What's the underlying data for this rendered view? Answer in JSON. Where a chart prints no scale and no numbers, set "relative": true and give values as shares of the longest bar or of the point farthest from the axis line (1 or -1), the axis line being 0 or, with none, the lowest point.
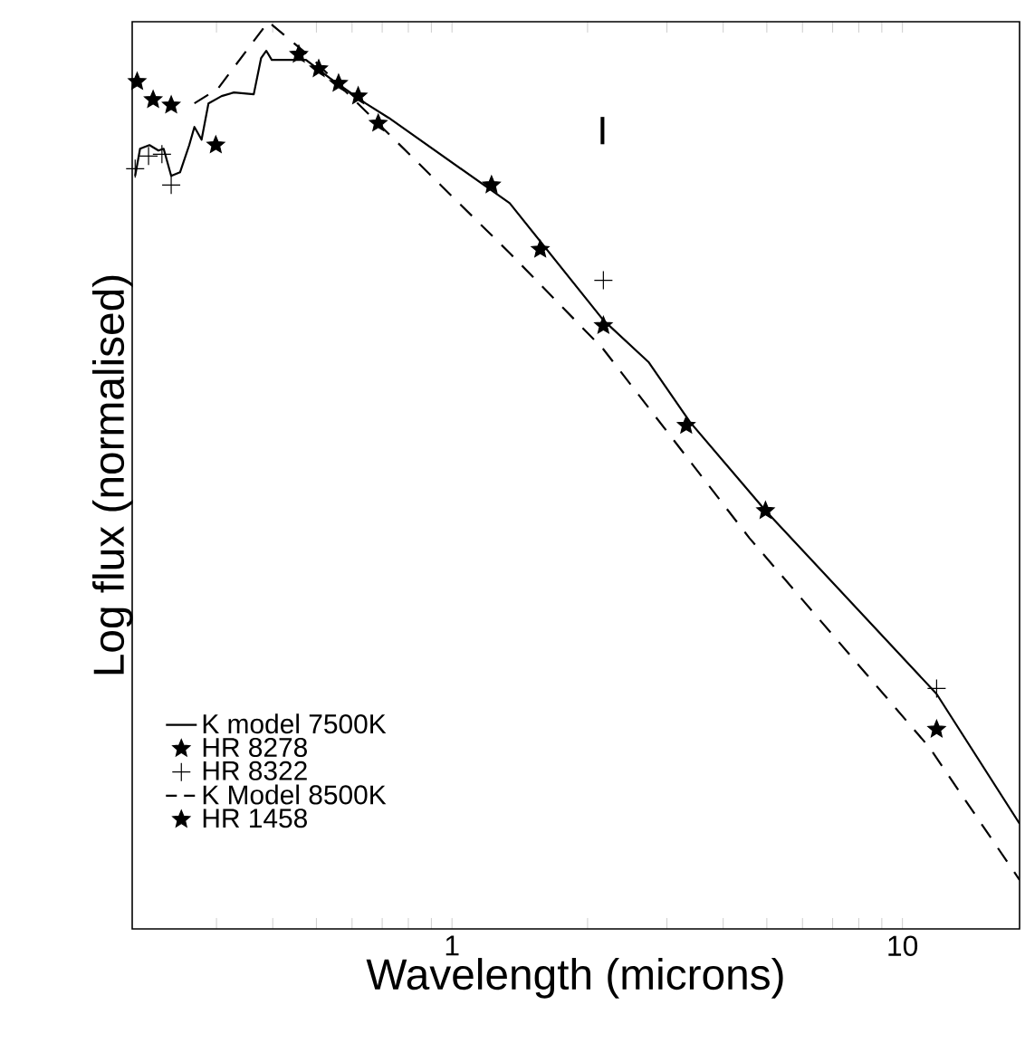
{
  "chart_data": {
    "type": "line",
    "xlabel": "Wavelength (microns)",
    "ylabel": "Log flux (normalised)",
    "relative": true,
    "log": "x",
    "xlim": [
      0.195,
      18.2
    ],
    "xticks": [
      {
        "value": 0.3,
        "label": null
      },
      {
        "value": 0.4,
        "label": null
      },
      {
        "value": 0.5,
        "label": null
      },
      {
        "value": 0.6,
        "label": null
      },
      {
        "value": 0.7,
        "label": null
      },
      {
        "value": 0.8,
        "label": null
      },
      {
        "value": 0.9,
        "label": null
      },
      1,
      {
        "value": 2,
        "label": null
      },
      {
        "value": 3,
        "label": null
      },
      {
        "value": 4,
        "label": null
      },
      {
        "value": 5,
        "label": null
      },
      {
        "value": 6,
        "label": null
      },
      {
        "value": 7,
        "label": null
      },
      {
        "value": 8,
        "label": null
      },
      {
        "value": 9,
        "label": null
      },
      10
    ],
    "legend": "bottom left",
    "grid": false,
    "annotations": [
      "I"
    ],
    "series": [
      {
        "name": "K model 7500K",
        "line_style": "solid",
        "marker": "none",
        "color": "#000000",
        "x": [
          0.198,
          0.203,
          0.213,
          0.223,
          0.229,
          0.238,
          0.249,
          0.261,
          0.268,
          0.278,
          0.288,
          0.308,
          0.328,
          0.363,
          0.377,
          0.387,
          0.398,
          0.445,
          0.474,
          0.535,
          0.643,
          0.724,
          1.343,
          2.168,
          2.729,
          3.373,
          4.966,
          11.91,
          18.2
        ],
        "values": [
          0.83,
          0.86,
          0.864,
          0.858,
          0.86,
          0.83,
          0.834,
          0.864,
          0.884,
          0.87,
          0.91,
          0.918,
          0.922,
          0.92,
          0.96,
          0.968,
          0.958,
          0.958,
          0.958,
          0.938,
          0.91,
          0.894,
          0.8,
          0.671,
          0.625,
          0.559,
          0.461,
          0.259,
          0.116
        ]
      },
      {
        "name": "HR 8278",
        "type": "scatter",
        "marker": "star",
        "color": "#000000",
        "x": [
          0.506,
          0.619,
          0.686,
          1.224,
          1.57,
          2.168,
          3.311,
          4.966
        ],
        "values": [
          0.948,
          0.918,
          0.888,
          0.82,
          0.749,
          0.665,
          0.555,
          0.461
        ]
      },
      {
        "name": "HR 8322",
        "type": "scatter",
        "marker": "cross",
        "color": "#000000",
        "x": [
          0.198,
          0.212,
          0.227,
          0.238,
          2.168,
          11.91
        ],
        "values": [
          0.838,
          0.852,
          0.854,
          0.82,
          0.715,
          0.265
        ]
      },
      {
        "name": "K Model 8500K",
        "line_style": "dashed",
        "marker": "none",
        "color": "#000000",
        "x": [
          0.268,
          0.302,
          0.391,
          0.488,
          1.343,
          2.168,
          4.571,
          11.48,
          18.2
        ],
        "values": [
          0.91,
          0.926,
          1.0,
          0.96,
          0.745,
          0.639,
          0.431,
          0.2,
          0.054
        ]
      },
      {
        "name": "HR 1458",
        "type": "scatter",
        "marker": "star",
        "color": "#000000",
        "x": [
          0.2,
          0.217,
          0.238,
          0.299,
          0.457,
          0.56,
          11.91
        ],
        "values": [
          0.934,
          0.914,
          0.908,
          0.864,
          0.964,
          0.932,
          0.22
        ]
      }
    ]
  }
}
